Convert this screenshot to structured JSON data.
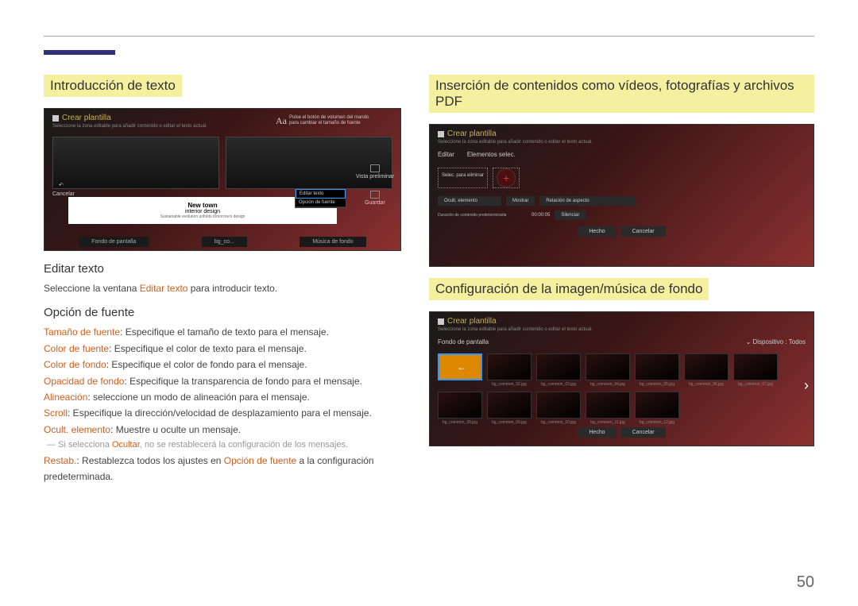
{
  "page_number": "50",
  "left": {
    "section_title": "Introducción de texto",
    "screenshot": {
      "title": "Crear plantilla",
      "subtitle": "Seleccione la zona editable para añadir contenido o editar el texto actual.",
      "aa_label": "Aa",
      "aa_note": "Pulse el botón de volumen del mando para cambiar el tamaño de fuente",
      "white_box": {
        "line1": "New town",
        "line2": "interior design",
        "line3": "Sustainable evolution unfolds tomorrow's design"
      },
      "menu": {
        "item1": "Editar texto",
        "item2": "Opción de fuente"
      },
      "side": {
        "preview": "Vista preliminar",
        "save": "Guardar"
      },
      "back": "Cancelar",
      "tabs": {
        "t1": "Fondo de pantalla",
        "t2": "bg_co...",
        "t3": "Música de fondo"
      }
    },
    "h_editar": "Editar texto",
    "p_editar_pre": "Seleccione la ventana ",
    "p_editar_orange": "Editar texto",
    "p_editar_post": " para introducir texto.",
    "h_opcion": "Opción de fuente",
    "items": [
      {
        "label": "Tamaño de fuente",
        "text": ": Especifique el tamaño de texto para el mensaje."
      },
      {
        "label": "Color de fuente",
        "text": ": Especifique el color de texto para el mensaje."
      },
      {
        "label": "Color de fondo",
        "text": ": Especifique el color de fondo para el mensaje."
      },
      {
        "label": "Opacidad de fondo",
        "text": ": Especifique la transparencia de fondo para el mensaje."
      },
      {
        "label": "Alineación",
        "text": ": seleccione un modo de alineación para el mensaje."
      },
      {
        "label": "Scroll",
        "text": ": Especifique la dirección/velocidad de desplazamiento para el mensaje."
      },
      {
        "label": "Ocult. elemento",
        "text": ": Muestre u oculte un mensaje."
      }
    ],
    "note_pre": "Si selecciona ",
    "note_orange": "Ocultar",
    "note_post": ", no se restablecerá la configuración de los mensajes.",
    "restab_label": "Restab.",
    "restab_pre": ": Restablezca todos los ajustes en ",
    "restab_orange": "Opción de fuente",
    "restab_post": " a la configuración predeterminada."
  },
  "right": {
    "section_title": "Inserción de contenidos como vídeos, fotografías y archivos PDF",
    "section_title2": "Configuración de la imagen/música de fondo",
    "ss1": {
      "title": "Crear plantilla",
      "subtitle": "Seleccione la zona editable para añadir contenido o editar el texto actual.",
      "tab1": "Editar",
      "tab2": "Elementos selec.",
      "select_label": "Selec. para eliminar",
      "row1_label": "Ocult. elemento",
      "row1_opt": "Mostrar",
      "row1_btn": "Relación de aspecto",
      "row2_label": "Duración de contenido predeterminada",
      "row2_time": "00:00:05",
      "row2_btn": "Silenciar",
      "done": "Hecho",
      "cancel": "Cancelar"
    },
    "ss2": {
      "title": "Crear plantilla",
      "subtitle": "Seleccione la zona editable para añadir contenido o editar el texto actual.",
      "bar_label": "Fondo de pantalla",
      "bar_device": "Dispositivo : Todos",
      "thumbs": [
        "",
        "bg_common_02.jpg",
        "bg_common_03.jpg",
        "bg_common_04.jpg",
        "bg_common_05.jpg",
        "bg_common_06.jpg",
        "bg_common_07.jpg",
        "bg_common_08.jpg",
        "bg_common_09.jpg",
        "bg_common_10.jpg",
        "bg_common_11.jpg",
        "bg_common_12.jpg"
      ],
      "done": "Hecho",
      "cancel": "Cancelar"
    }
  }
}
